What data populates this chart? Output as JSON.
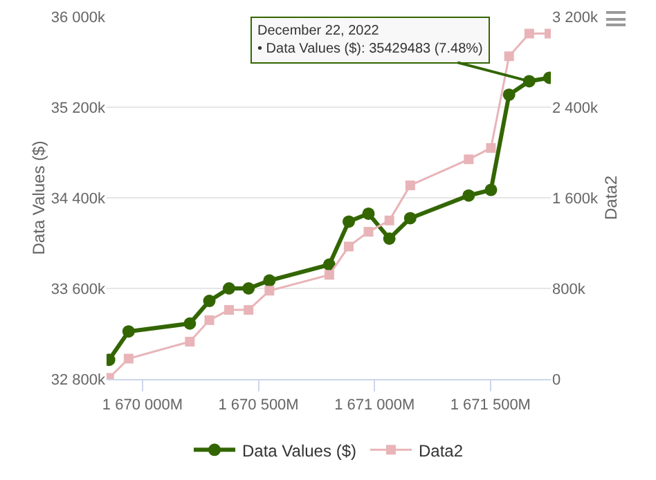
{
  "chart_data": {
    "type": "line",
    "x": [
      1669856,
      1669940,
      1670204,
      1670288,
      1670373,
      1670457,
      1670547,
      1670805,
      1670889,
      1670974,
      1671064,
      1671154,
      1671406,
      1671502,
      1671580,
      1671667,
      1671754
    ],
    "series": [
      {
        "name": "Data Values ($)",
        "color": "#336600",
        "marker": "circle",
        "values": [
          32970000,
          33220000,
          33290000,
          33490000,
          33600000,
          33600000,
          33670000,
          33810000,
          34190000,
          34260000,
          34040000,
          34220000,
          34420000,
          34470000,
          35310000,
          35429483,
          35460000
        ]
      },
      {
        "name": "Data2",
        "color": "#e8b4b8",
        "marker": "square",
        "axis": "y2",
        "values": [
          10000,
          180000,
          330000,
          520000,
          610000,
          610000,
          780000,
          920000,
          1170000,
          1300000,
          1400000,
          1710000,
          1940000,
          2040000,
          2850000,
          3050000,
          3050000
        ]
      }
    ],
    "xlim": [
      1669845,
      1671760
    ],
    "xticks": [
      {
        "value": 1670000,
        "label": "1 670 000M"
      },
      {
        "value": 1670500,
        "label": "1 670 500M"
      },
      {
        "value": 1671000,
        "label": "1 671 000M"
      },
      {
        "value": 1671500,
        "label": "1 671 500M"
      }
    ],
    "ylim": [
      32800000,
      36000000
    ],
    "yticks": [
      {
        "value": 32800000,
        "label": "32 800k"
      },
      {
        "value": 33600000,
        "label": "33 600k"
      },
      {
        "value": 34400000,
        "label": "34 400k"
      },
      {
        "value": 35200000,
        "label": "35 200k"
      },
      {
        "value": 36000000,
        "label": "36 000k"
      }
    ],
    "y2lim": [
      0,
      3200000
    ],
    "y2ticks": [
      0,
      {
        "value": 800000,
        "label": "800k"
      },
      {
        "value": 1600000,
        "label": "1 600k"
      },
      {
        "value": 2400000,
        "label": "2 400k"
      },
      {
        "value": 3200000,
        "label": "3 200k"
      }
    ],
    "ylabel": "Data Values ($)",
    "y2label": "Data2",
    "grid": "y",
    "legend": "bottom",
    "annotations": [
      {
        "text": "December 22, 2022\n• Data Values ($): 35429483 (7.48%)",
        "x": 1671667,
        "y": 35429483
      }
    ]
  }
}
